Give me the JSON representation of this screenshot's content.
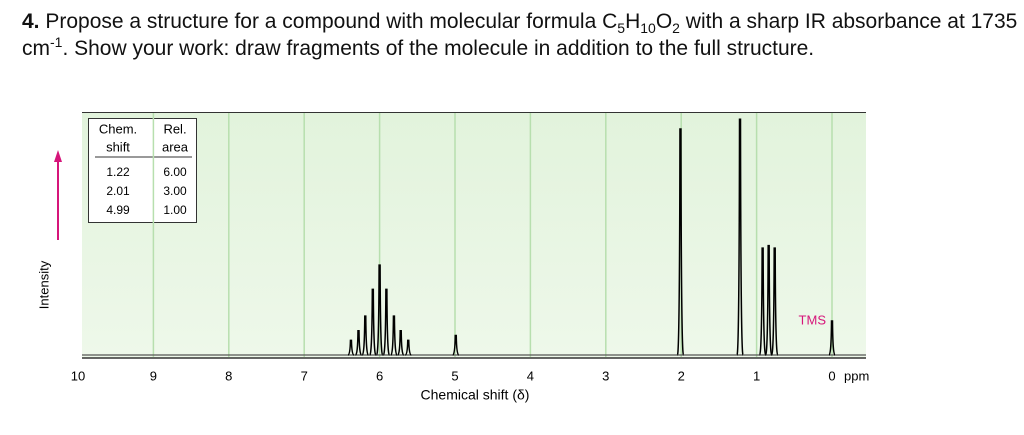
{
  "question": {
    "number": "4.",
    "parts": [
      "Propose a structure for a compound with molecular formula C",
      "5",
      "H",
      "10",
      "O",
      "2",
      " with a sharp IR absorbance at 1735 cm",
      "-1",
      ". Show your work: draw fragments of the molecule in addition to the full structure."
    ]
  },
  "chart_data": {
    "type": "spectrum",
    "xlabel": "Chemical shift (δ)",
    "x_unit": "ppm",
    "ylabel": "Intensity",
    "xlim": [
      10,
      0
    ],
    "xticks": [
      10,
      9,
      8,
      7,
      6,
      5,
      4,
      3,
      2,
      1,
      0
    ],
    "ylim": [
      0,
      100
    ],
    "grid": true,
    "color": "#000000",
    "x": [
      6.38,
      6.28,
      6.19,
      6.09,
      6.0,
      5.91,
      5.81,
      5.72,
      5.62,
      4.99,
      2.01,
      1.22,
      0.92,
      0.84,
      0.76,
      0.0
    ],
    "values": [
      6,
      10,
      16,
      27,
      37,
      27,
      16,
      10,
      6,
      8,
      93,
      97,
      44,
      45,
      44,
      14
    ],
    "annotation": "TMS",
    "table": {
      "header": [
        [
          "Chem.",
          "shift"
        ],
        [
          "Rel.",
          "area"
        ]
      ],
      "rows": [
        [
          "1.22",
          "6.00"
        ],
        [
          "2.01",
          "3.00"
        ],
        [
          "4.99",
          "1.00"
        ]
      ]
    }
  }
}
